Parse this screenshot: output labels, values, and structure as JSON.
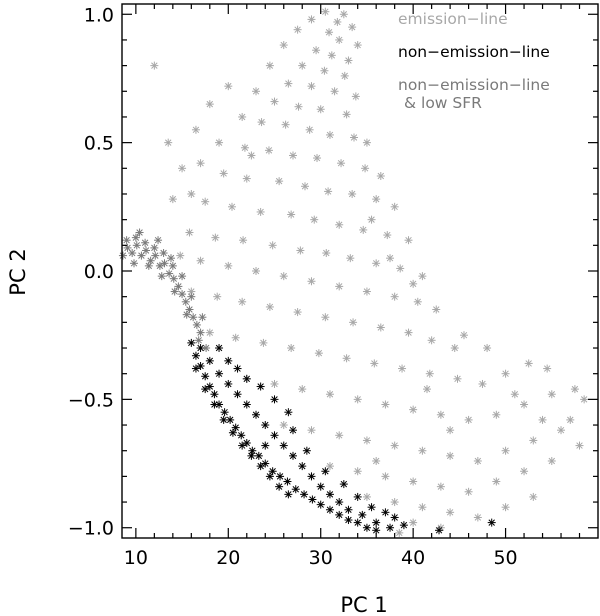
{
  "chart_data": {
    "type": "scatter",
    "title": "",
    "xlabel": "PC 1",
    "ylabel": "PC 2",
    "xlim": [
      8.5,
      60
    ],
    "ylim": [
      -1.04,
      1.04
    ],
    "x_ticks": [
      10,
      20,
      30,
      40,
      50
    ],
    "x_tick_labels": [
      "10",
      "20",
      "30",
      "40",
      "50"
    ],
    "y_ticks": [
      -1.0,
      -0.5,
      0.0,
      0.5,
      1.0
    ],
    "y_tick_labels": [
      "−1.0",
      "−0.5",
      "0.0",
      "0.5",
      "1.0"
    ],
    "marker": "asterisk",
    "grid": false,
    "legend": {
      "placement": "top-right",
      "entries": [
        {
          "key": "emission",
          "label": "emission−line",
          "color": "#a8a8a8"
        },
        {
          "key": "nonem",
          "label": "non−emission−line",
          "color": "#000000"
        },
        {
          "key": "lowsfr",
          "label": "non−emission−line",
          "label2": "& low SFR",
          "color": "#7a7a7a"
        }
      ]
    },
    "series": [
      {
        "key": "emission",
        "color": "#a8a8a8",
        "values": [
          [
            32.5,
            1.0
          ],
          [
            31.8,
            0.97
          ],
          [
            33.4,
            0.95
          ],
          [
            30.9,
            0.93
          ],
          [
            32.0,
            0.9
          ],
          [
            34.0,
            0.88
          ],
          [
            29.5,
            0.86
          ],
          [
            31.2,
            0.84
          ],
          [
            33.0,
            0.82
          ],
          [
            28.0,
            0.8
          ],
          [
            30.4,
            0.78
          ],
          [
            32.6,
            0.76
          ],
          [
            26.5,
            0.73
          ],
          [
            29.0,
            0.72
          ],
          [
            31.5,
            0.7
          ],
          [
            33.8,
            0.68
          ],
          [
            25.0,
            0.66
          ],
          [
            27.6,
            0.64
          ],
          [
            30.0,
            0.63
          ],
          [
            32.8,
            0.61
          ],
          [
            23.6,
            0.58
          ],
          [
            26.2,
            0.57
          ],
          [
            28.8,
            0.55
          ],
          [
            31.0,
            0.53
          ],
          [
            33.6,
            0.52
          ],
          [
            35.0,
            0.5
          ],
          [
            21.8,
            0.48
          ],
          [
            24.4,
            0.47
          ],
          [
            27.0,
            0.45
          ],
          [
            29.6,
            0.44
          ],
          [
            32.2,
            0.42
          ],
          [
            34.8,
            0.4
          ],
          [
            36.5,
            0.37
          ],
          [
            19.5,
            0.38
          ],
          [
            22.0,
            0.36
          ],
          [
            25.5,
            0.35
          ],
          [
            28.3,
            0.33
          ],
          [
            30.8,
            0.31
          ],
          [
            33.4,
            0.3
          ],
          [
            36.0,
            0.28
          ],
          [
            38.0,
            0.25
          ],
          [
            17.5,
            0.27
          ],
          [
            20.4,
            0.25
          ],
          [
            23.5,
            0.23
          ],
          [
            26.8,
            0.22
          ],
          [
            29.3,
            0.2
          ],
          [
            32.0,
            0.18
          ],
          [
            34.6,
            0.16
          ],
          [
            37.2,
            0.14
          ],
          [
            39.5,
            0.12
          ],
          [
            15.8,
            0.15
          ],
          [
            18.6,
            0.13
          ],
          [
            21.6,
            0.12
          ],
          [
            24.8,
            0.1
          ],
          [
            27.8,
            0.08
          ],
          [
            30.6,
            0.07
          ],
          [
            33.2,
            0.05
          ],
          [
            36.0,
            0.03
          ],
          [
            38.6,
            0.01
          ],
          [
            41.0,
            -0.02
          ],
          [
            14.8,
            0.06
          ],
          [
            17.0,
            0.04
          ],
          [
            20.0,
            0.02
          ],
          [
            23.0,
            0.0
          ],
          [
            26.0,
            -0.02
          ],
          [
            29.0,
            -0.04
          ],
          [
            32.0,
            -0.06
          ],
          [
            35.0,
            -0.08
          ],
          [
            38.0,
            -0.1
          ],
          [
            40.5,
            -0.12
          ],
          [
            42.5,
            -0.15
          ],
          [
            16.0,
            -0.08
          ],
          [
            18.8,
            -0.1
          ],
          [
            21.5,
            -0.12
          ],
          [
            24.5,
            -0.14
          ],
          [
            27.5,
            -0.16
          ],
          [
            30.5,
            -0.18
          ],
          [
            33.5,
            -0.2
          ],
          [
            36.5,
            -0.22
          ],
          [
            39.5,
            -0.24
          ],
          [
            42.0,
            -0.27
          ],
          [
            44.5,
            -0.3
          ],
          [
            18.0,
            -0.24
          ],
          [
            20.8,
            -0.26
          ],
          [
            23.8,
            -0.28
          ],
          [
            26.8,
            -0.3
          ],
          [
            29.8,
            -0.32
          ],
          [
            32.8,
            -0.34
          ],
          [
            35.8,
            -0.36
          ],
          [
            38.8,
            -0.38
          ],
          [
            41.8,
            -0.4
          ],
          [
            44.8,
            -0.42
          ],
          [
            47.5,
            -0.44
          ],
          [
            50.0,
            -0.4
          ],
          [
            52.5,
            -0.36
          ],
          [
            54.5,
            -0.38
          ],
          [
            22.0,
            -0.42
          ],
          [
            25.0,
            -0.44
          ],
          [
            28.0,
            -0.46
          ],
          [
            31.0,
            -0.48
          ],
          [
            34.0,
            -0.5
          ],
          [
            37.0,
            -0.52
          ],
          [
            40.0,
            -0.54
          ],
          [
            43.0,
            -0.56
          ],
          [
            46.0,
            -0.58
          ],
          [
            49.0,
            -0.56
          ],
          [
            52.0,
            -0.52
          ],
          [
            55.0,
            -0.48
          ],
          [
            57.5,
            -0.46
          ],
          [
            58.5,
            -0.5
          ],
          [
            26.0,
            -0.6
          ],
          [
            29.0,
            -0.62
          ],
          [
            32.0,
            -0.64
          ],
          [
            35.0,
            -0.66
          ],
          [
            38.0,
            -0.68
          ],
          [
            41.0,
            -0.7
          ],
          [
            44.0,
            -0.72
          ],
          [
            47.0,
            -0.74
          ],
          [
            50.0,
            -0.7
          ],
          [
            53.0,
            -0.66
          ],
          [
            56.0,
            -0.62
          ],
          [
            58.0,
            -0.68
          ],
          [
            31.0,
            -0.76
          ],
          [
            34.0,
            -0.78
          ],
          [
            37.0,
            -0.8
          ],
          [
            40.0,
            -0.82
          ],
          [
            43.0,
            -0.84
          ],
          [
            46.0,
            -0.86
          ],
          [
            49.0,
            -0.82
          ],
          [
            52.0,
            -0.78
          ],
          [
            55.0,
            -0.74
          ],
          [
            35.0,
            -0.88
          ],
          [
            38.0,
            -0.9
          ],
          [
            41.0,
            -0.92
          ],
          [
            44.0,
            -0.94
          ],
          [
            47.0,
            -0.96
          ],
          [
            50.0,
            -0.92
          ],
          [
            53.0,
            -0.88
          ],
          [
            40.0,
            -0.98
          ],
          [
            43.0,
            -1.0
          ],
          [
            38.5,
            -1.02
          ],
          [
            12.0,
            0.8
          ],
          [
            13.5,
            0.5
          ],
          [
            15.0,
            0.4
          ],
          [
            16.5,
            0.55
          ],
          [
            18.0,
            0.65
          ],
          [
            20.0,
            0.72
          ],
          [
            14.0,
            0.28
          ],
          [
            16.0,
            0.3
          ],
          [
            21.5,
            0.6
          ],
          [
            23.0,
            0.7
          ],
          [
            24.5,
            0.8
          ],
          [
            26.0,
            0.88
          ],
          [
            27.5,
            0.94
          ],
          [
            29.0,
            0.98
          ],
          [
            30.5,
            1.01
          ],
          [
            22.5,
            0.45
          ],
          [
            19.0,
            0.5
          ],
          [
            17.0,
            0.42
          ],
          [
            35.5,
            0.2
          ],
          [
            37.5,
            0.05
          ],
          [
            40.0,
            -0.05
          ],
          [
            45.5,
            -0.25
          ],
          [
            48.0,
            -0.3
          ],
          [
            51.0,
            -0.48
          ],
          [
            54.0,
            -0.58
          ],
          [
            57.0,
            -0.58
          ],
          [
            44.0,
            -0.62
          ],
          [
            41.5,
            -0.46
          ],
          [
            36.0,
            -0.74
          ]
        ]
      },
      {
        "key": "lowsfr",
        "color": "#7a7a7a",
        "values": [
          [
            8.6,
            0.06
          ],
          [
            9.1,
            0.09
          ],
          [
            9.6,
            0.07
          ],
          [
            10.1,
            0.1
          ],
          [
            10.6,
            0.06
          ],
          [
            11.1,
            0.08
          ],
          [
            11.6,
            0.04
          ],
          [
            12.1,
            0.06
          ],
          [
            12.6,
            0.02
          ],
          [
            13.1,
            0.03
          ],
          [
            13.6,
            -0.01
          ],
          [
            14.1,
            -0.03
          ],
          [
            14.6,
            -0.06
          ],
          [
            15.0,
            -0.09
          ],
          [
            15.4,
            -0.12
          ],
          [
            15.8,
            -0.15
          ],
          [
            16.2,
            -0.18
          ],
          [
            16.6,
            -0.21
          ],
          [
            17.0,
            -0.24
          ],
          [
            9.0,
            0.12
          ],
          [
            10.0,
            0.13
          ],
          [
            11.0,
            0.11
          ],
          [
            12.0,
            0.09
          ],
          [
            13.0,
            0.07
          ],
          [
            14.0,
            0.02
          ],
          [
            15.0,
            -0.02
          ],
          [
            16.0,
            -0.1
          ],
          [
            17.2,
            -0.18
          ],
          [
            9.8,
            0.03
          ],
          [
            11.4,
            0.02
          ],
          [
            12.8,
            -0.02
          ],
          [
            14.2,
            -0.08
          ],
          [
            15.5,
            -0.17
          ],
          [
            16.8,
            -0.27
          ],
          [
            17.6,
            -0.3
          ],
          [
            10.4,
            0.15
          ],
          [
            12.4,
            0.12
          ],
          [
            13.8,
            0.05
          ]
        ]
      },
      {
        "key": "nonem",
        "color": "#000000",
        "values": [
          [
            16.0,
            -0.28
          ],
          [
            16.5,
            -0.33
          ],
          [
            17.0,
            -0.37
          ],
          [
            17.5,
            -0.41
          ],
          [
            18.0,
            -0.45
          ],
          [
            18.5,
            -0.48
          ],
          [
            19.0,
            -0.52
          ],
          [
            19.6,
            -0.55
          ],
          [
            20.2,
            -0.58
          ],
          [
            20.8,
            -0.61
          ],
          [
            21.4,
            -0.64
          ],
          [
            22.0,
            -0.67
          ],
          [
            22.6,
            -0.7
          ],
          [
            23.3,
            -0.72
          ],
          [
            24.0,
            -0.75
          ],
          [
            24.8,
            -0.78
          ],
          [
            25.6,
            -0.8
          ],
          [
            26.4,
            -0.82
          ],
          [
            27.3,
            -0.85
          ],
          [
            28.2,
            -0.87
          ],
          [
            29.1,
            -0.89
          ],
          [
            30.0,
            -0.91
          ],
          [
            31.0,
            -0.93
          ],
          [
            32.0,
            -0.95
          ],
          [
            33.0,
            -0.97
          ],
          [
            34.0,
            -0.98
          ],
          [
            35.0,
            -1.0
          ],
          [
            36.0,
            -1.01
          ],
          [
            17.0,
            -0.3
          ],
          [
            18.0,
            -0.35
          ],
          [
            19.0,
            -0.4
          ],
          [
            20.0,
            -0.44
          ],
          [
            21.0,
            -0.48
          ],
          [
            22.0,
            -0.52
          ],
          [
            23.0,
            -0.56
          ],
          [
            24.0,
            -0.6
          ],
          [
            25.0,
            -0.64
          ],
          [
            26.0,
            -0.68
          ],
          [
            27.0,
            -0.72
          ],
          [
            28.0,
            -0.76
          ],
          [
            29.0,
            -0.8
          ],
          [
            30.0,
            -0.84
          ],
          [
            31.0,
            -0.87
          ],
          [
            32.0,
            -0.9
          ],
          [
            33.0,
            -0.93
          ],
          [
            34.5,
            -0.95
          ],
          [
            36.0,
            -0.98
          ],
          [
            37.5,
            -1.0
          ],
          [
            39.0,
            -0.99
          ],
          [
            16.5,
            -0.38
          ],
          [
            17.5,
            -0.46
          ],
          [
            18.5,
            -0.52
          ],
          [
            19.5,
            -0.58
          ],
          [
            20.5,
            -0.63
          ],
          [
            21.5,
            -0.68
          ],
          [
            22.5,
            -0.72
          ],
          [
            23.5,
            -0.76
          ],
          [
            24.5,
            -0.8
          ],
          [
            25.5,
            -0.84
          ],
          [
            26.5,
            -0.87
          ],
          [
            19.0,
            -0.3
          ],
          [
            20.0,
            -0.35
          ],
          [
            21.0,
            -0.38
          ],
          [
            22.0,
            -0.42
          ],
          [
            23.5,
            -0.45
          ],
          [
            25.0,
            -0.5
          ],
          [
            26.5,
            -0.55
          ],
          [
            24.0,
            -0.68
          ],
          [
            27.0,
            -0.62
          ],
          [
            28.5,
            -0.7
          ],
          [
            30.5,
            -0.78
          ],
          [
            32.5,
            -0.83
          ],
          [
            34.0,
            -0.88
          ],
          [
            35.5,
            -0.92
          ],
          [
            42.8,
            -1.01
          ],
          [
            48.5,
            -0.98
          ],
          [
            38.0,
            -0.96
          ],
          [
            37.0,
            -0.94
          ]
        ]
      }
    ]
  }
}
